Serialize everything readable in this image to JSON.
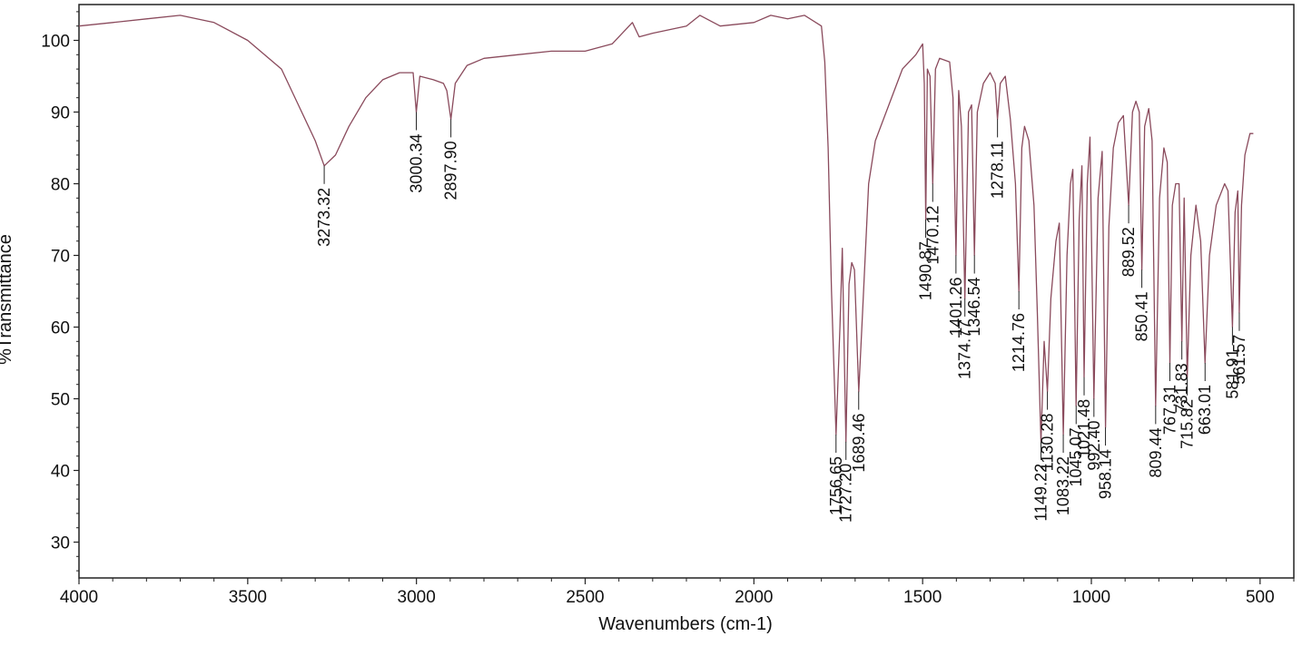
{
  "chart_data": {
    "type": "line",
    "xlabel": "Wavenumbers (cm-1)",
    "ylabel": "%Transmittance",
    "xlim": [
      4000,
      400
    ],
    "ylim": [
      25,
      105
    ],
    "x_ticks": [
      4000,
      3500,
      3000,
      2500,
      2000,
      1500,
      1000,
      500
    ],
    "y_ticks": [
      30,
      40,
      50,
      60,
      70,
      80,
      90,
      100
    ],
    "x_tick_labels": [
      "4000",
      "3500",
      "3000",
      "2500",
      "2000",
      "1500",
      "1000",
      "500"
    ],
    "y_tick_labels": [
      "30",
      "40",
      "50",
      "60",
      "70",
      "80",
      "90",
      "100"
    ],
    "colors": {
      "trace": "#8a4a5c",
      "axes": "#222222"
    },
    "series": [
      {
        "points": [
          [
            4000,
            102
          ],
          [
            3900,
            102.5
          ],
          [
            3800,
            103
          ],
          [
            3700,
            103.5
          ],
          [
            3600,
            102.5
          ],
          [
            3500,
            100
          ],
          [
            3400,
            96
          ],
          [
            3350,
            91
          ],
          [
            3300,
            86
          ],
          [
            3273.32,
            82.5
          ],
          [
            3240,
            84
          ],
          [
            3200,
            88
          ],
          [
            3150,
            92
          ],
          [
            3100,
            94.5
          ],
          [
            3050,
            95.5
          ],
          [
            3010,
            95.5
          ],
          [
            3000.34,
            90
          ],
          [
            2990,
            95
          ],
          [
            2950,
            94.5
          ],
          [
            2920,
            94
          ],
          [
            2910,
            93
          ],
          [
            2897.9,
            89
          ],
          [
            2885,
            94
          ],
          [
            2850,
            96.5
          ],
          [
            2800,
            97.5
          ],
          [
            2700,
            98
          ],
          [
            2600,
            98.5
          ],
          [
            2500,
            98.5
          ],
          [
            2420,
            99.5
          ],
          [
            2360,
            102.5
          ],
          [
            2340,
            100.5
          ],
          [
            2300,
            101
          ],
          [
            2200,
            102
          ],
          [
            2160,
            103.5
          ],
          [
            2100,
            102
          ],
          [
            2000,
            102.5
          ],
          [
            1950,
            103.5
          ],
          [
            1900,
            103
          ],
          [
            1850,
            103.5
          ],
          [
            1800,
            102
          ],
          [
            1790,
            97
          ],
          [
            1780,
            85
          ],
          [
            1770,
            65
          ],
          [
            1756.65,
            45
          ],
          [
            1745,
            60
          ],
          [
            1738,
            71
          ],
          [
            1727.2,
            44
          ],
          [
            1718,
            66
          ],
          [
            1710,
            69
          ],
          [
            1702,
            68
          ],
          [
            1689.46,
            51
          ],
          [
            1678,
            62
          ],
          [
            1660,
            80
          ],
          [
            1640,
            86
          ],
          [
            1600,
            91
          ],
          [
            1560,
            96
          ],
          [
            1520,
            98
          ],
          [
            1500,
            99.5
          ],
          [
            1495,
            94
          ],
          [
            1490.87,
            75
          ],
          [
            1486,
            96
          ],
          [
            1478,
            95
          ],
          [
            1470.12,
            80
          ],
          [
            1462,
            96
          ],
          [
            1450,
            97.5
          ],
          [
            1420,
            97
          ],
          [
            1410,
            92
          ],
          [
            1401.26,
            70
          ],
          [
            1393,
            93
          ],
          [
            1385,
            88
          ],
          [
            1374.77,
            64
          ],
          [
            1364,
            90
          ],
          [
            1355,
            91
          ],
          [
            1346.54,
            70
          ],
          [
            1338,
            90
          ],
          [
            1320,
            94
          ],
          [
            1300,
            95.5
          ],
          [
            1285,
            94
          ],
          [
            1278.11,
            89
          ],
          [
            1270,
            94
          ],
          [
            1255,
            95
          ],
          [
            1240,
            89
          ],
          [
            1225,
            80
          ],
          [
            1214.76,
            65
          ],
          [
            1206,
            85
          ],
          [
            1198,
            88
          ],
          [
            1185,
            86
          ],
          [
            1170,
            77
          ],
          [
            1160,
            62
          ],
          [
            1149.22,
            44
          ],
          [
            1140,
            58
          ],
          [
            1130.28,
            51
          ],
          [
            1120,
            64
          ],
          [
            1105,
            72
          ],
          [
            1095,
            74.5
          ],
          [
            1083.22,
            45
          ],
          [
            1072,
            70
          ],
          [
            1062,
            80
          ],
          [
            1055,
            82
          ],
          [
            1045.07,
            49
          ],
          [
            1036,
            75
          ],
          [
            1028,
            82.5
          ],
          [
            1021.48,
            53
          ],
          [
            1012,
            80
          ],
          [
            1004,
            86.5
          ],
          [
            992.4,
            50
          ],
          [
            980,
            78
          ],
          [
            968,
            84.5
          ],
          [
            958.14,
            46
          ],
          [
            948,
            74
          ],
          [
            935,
            85
          ],
          [
            920,
            88.5
          ],
          [
            905,
            89.5
          ],
          [
            889.52,
            77
          ],
          [
            878,
            90
          ],
          [
            868,
            91.5
          ],
          [
            858,
            90
          ],
          [
            850.41,
            68
          ],
          [
            842,
            88
          ],
          [
            830,
            90.5
          ],
          [
            820,
            86
          ],
          [
            809.44,
            49
          ],
          [
            798,
            78
          ],
          [
            785,
            85
          ],
          [
            775,
            83
          ],
          [
            767.31,
            55
          ],
          [
            760,
            77
          ],
          [
            750,
            80
          ],
          [
            740,
            80
          ],
          [
            731.83,
            58
          ],
          [
            725,
            78
          ],
          [
            715.82,
            53
          ],
          [
            705,
            70
          ],
          [
            690,
            77
          ],
          [
            676,
            72
          ],
          [
            663.01,
            55
          ],
          [
            650,
            70
          ],
          [
            630,
            77
          ],
          [
            605,
            80
          ],
          [
            595,
            79
          ],
          [
            581.91,
            60
          ],
          [
            574,
            76
          ],
          [
            566,
            79
          ],
          [
            561.57,
            62
          ],
          [
            555,
            77
          ],
          [
            545,
            84
          ],
          [
            530,
            87
          ],
          [
            520,
            87
          ]
        ]
      }
    ],
    "peak_labels": [
      {
        "x": 3273.32,
        "text": "3273.32"
      },
      {
        "x": 3000.34,
        "text": "3000.34"
      },
      {
        "x": 2897.9,
        "text": "2897.90"
      },
      {
        "x": 1756.65,
        "text": "1756.65"
      },
      {
        "x": 1727.2,
        "text": "1727.20"
      },
      {
        "x": 1689.46,
        "text": "1689.46"
      },
      {
        "x": 1490.87,
        "text": "1490.87"
      },
      {
        "x": 1470.12,
        "text": "1470.12"
      },
      {
        "x": 1401.26,
        "text": "1401.26"
      },
      {
        "x": 1374.77,
        "text": "1374.77"
      },
      {
        "x": 1346.54,
        "text": "1346.54"
      },
      {
        "x": 1278.11,
        "text": "1278.11"
      },
      {
        "x": 1214.76,
        "text": "1214.76"
      },
      {
        "x": 1149.22,
        "text": "1149.22"
      },
      {
        "x": 1130.28,
        "text": "1130.28"
      },
      {
        "x": 1083.22,
        "text": "1083.22"
      },
      {
        "x": 1045.07,
        "text": "1045.07"
      },
      {
        "x": 1021.48,
        "text": "1021.48"
      },
      {
        "x": 992.4,
        "text": "992.40"
      },
      {
        "x": 958.14,
        "text": "958.14"
      },
      {
        "x": 889.52,
        "text": "889.52"
      },
      {
        "x": 850.41,
        "text": "850.41"
      },
      {
        "x": 809.44,
        "text": "809.44"
      },
      {
        "x": 767.31,
        "text": "767.31"
      },
      {
        "x": 731.83,
        "text": "731.83"
      },
      {
        "x": 715.82,
        "text": "715.82"
      },
      {
        "x": 663.01,
        "text": "663.01"
      },
      {
        "x": 581.91,
        "text": "581.91"
      },
      {
        "x": 561.57,
        "text": "561.57"
      }
    ]
  }
}
